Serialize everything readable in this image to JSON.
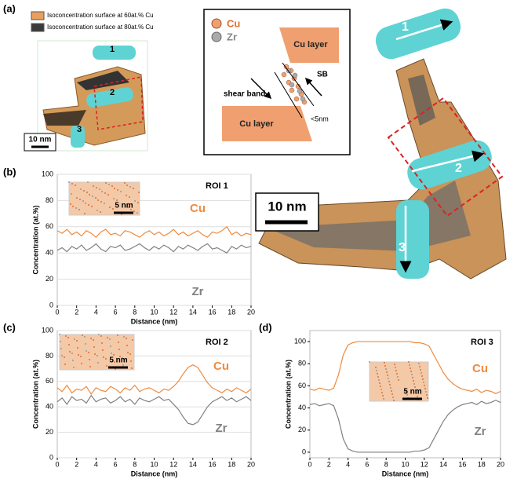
{
  "panel_labels": [
    "(a)",
    "(b)",
    "(c)",
    "(d)"
  ],
  "legend_3d": [
    "Isoconcentration surface at 60at.% Cu",
    "Isoconcentration surface at 80at.% Cu"
  ],
  "small_3d": {
    "rois": [
      "1",
      "2",
      "3"
    ],
    "scale_bar": "10 nm"
  },
  "schematic": {
    "legend": [
      "Cu",
      "Zr"
    ],
    "top_layer": "Cu layer",
    "bottom_layer": "Cu layer",
    "shear_band": "shear band",
    "sb": "SB",
    "width": "<5nm"
  },
  "large_3d": {
    "rois": [
      "1",
      "2",
      "3"
    ],
    "scale_bar": "10 nm"
  },
  "chart_data": [
    {
      "type": "line",
      "roi": "ROI 1",
      "scale_bar": "5 nm",
      "xlabel": "Distance (nm)",
      "ylabel": "Concentration (at.%)",
      "x": [
        0,
        0.5,
        1,
        1.5,
        2,
        2.5,
        3,
        3.5,
        4,
        4.5,
        5,
        5.5,
        6,
        6.5,
        7,
        7.5,
        8,
        8.5,
        9,
        9.5,
        10,
        10.5,
        11,
        11.5,
        12,
        12.5,
        13,
        13.5,
        14,
        14.5,
        15,
        15.5,
        16,
        16.5,
        17,
        17.5,
        18,
        18.5,
        19,
        19.5,
        20
      ],
      "xlim": [
        0,
        20
      ],
      "xticks": [
        0,
        2,
        4,
        6,
        8,
        10,
        12,
        14,
        16,
        18,
        20
      ],
      "ylim": [
        0,
        100
      ],
      "yticks": [
        0,
        20,
        40,
        60,
        80,
        100
      ],
      "grid": true,
      "series": [
        {
          "name": "Cu",
          "color": "#f08a3c",
          "values": [
            57,
            55,
            58,
            54,
            56,
            53,
            57,
            55,
            52,
            56,
            58,
            54,
            55,
            53,
            57,
            56,
            54,
            52,
            55,
            57,
            54,
            56,
            53,
            55,
            58,
            54,
            56,
            53,
            55,
            57,
            54,
            52,
            56,
            55,
            57,
            60,
            54,
            56,
            53,
            55,
            54
          ]
        },
        {
          "name": "Zr",
          "color": "#808080",
          "values": [
            42,
            44,
            41,
            45,
            43,
            46,
            42,
            44,
            47,
            43,
            41,
            45,
            44,
            46,
            42,
            43,
            45,
            47,
            44,
            42,
            45,
            43,
            46,
            44,
            41,
            45,
            43,
            46,
            44,
            42,
            45,
            47,
            43,
            44,
            42,
            40,
            45,
            43,
            46,
            44,
            45
          ]
        }
      ]
    },
    {
      "type": "line",
      "roi": "ROI 2",
      "scale_bar": "5 nm",
      "xlabel": "Distance (nm)",
      "ylabel": "Concentration (at.%)",
      "x": [
        0,
        0.5,
        1,
        1.5,
        2,
        2.5,
        3,
        3.5,
        4,
        4.5,
        5,
        5.5,
        6,
        6.5,
        7,
        7.5,
        8,
        8.5,
        9,
        9.5,
        10,
        10.5,
        11,
        11.5,
        12,
        12.5,
        13,
        13.5,
        14,
        14.5,
        15,
        15.5,
        16,
        16.5,
        17,
        17.5,
        18,
        18.5,
        19,
        19.5,
        20
      ],
      "xlim": [
        0,
        20
      ],
      "xticks": [
        0,
        2,
        4,
        6,
        8,
        10,
        12,
        14,
        16,
        18,
        20
      ],
      "ylim": [
        0,
        100
      ],
      "yticks": [
        0,
        20,
        40,
        60,
        80,
        100
      ],
      "grid": true,
      "series": [
        {
          "name": "Cu",
          "color": "#f08a3c",
          "values": [
            55,
            52,
            57,
            51,
            54,
            53,
            56,
            50,
            55,
            53,
            52,
            56,
            54,
            51,
            55,
            53,
            57,
            52,
            54,
            55,
            53,
            51,
            54,
            53,
            56,
            60,
            66,
            71,
            73,
            71,
            65,
            59,
            55,
            53,
            51,
            54,
            52,
            55,
            53,
            51,
            54
          ]
        },
        {
          "name": "Zr",
          "color": "#808080",
          "values": [
            44,
            47,
            42,
            48,
            45,
            46,
            43,
            49,
            44,
            46,
            47,
            43,
            45,
            48,
            44,
            46,
            42,
            47,
            45,
            44,
            46,
            48,
            45,
            46,
            42,
            38,
            32,
            27,
            26,
            28,
            34,
            40,
            44,
            46,
            48,
            45,
            47,
            44,
            46,
            48,
            45
          ]
        }
      ]
    },
    {
      "type": "line",
      "roi": "ROI 3",
      "scale_bar": "5 nm",
      "xlabel": "Distance (nm)",
      "ylabel": "Concentration (at.%)",
      "x": [
        0,
        0.5,
        1,
        1.5,
        2,
        2.5,
        3,
        3.5,
        4,
        4.5,
        5,
        5.5,
        6,
        6.5,
        7,
        7.5,
        8,
        8.5,
        9,
        9.5,
        10,
        10.5,
        11,
        11.5,
        12,
        12.5,
        13,
        13.5,
        14,
        14.5,
        15,
        15.5,
        16,
        16.5,
        17,
        17.5,
        18,
        18.5,
        19,
        19.5,
        20
      ],
      "xlim": [
        0,
        20
      ],
      "xticks": [
        0,
        2,
        4,
        6,
        8,
        10,
        12,
        14,
        16,
        18,
        20
      ],
      "ylim": [
        -5,
        110
      ],
      "yticks": [
        0,
        20,
        40,
        60,
        80,
        100
      ],
      "grid": false,
      "series": [
        {
          "name": "Cu",
          "color": "#f08a3c",
          "values": [
            57,
            56,
            58,
            57,
            56,
            58,
            70,
            88,
            97,
            99,
            100,
            100,
            100,
            100,
            100,
            100,
            100,
            100,
            100,
            100,
            100,
            100,
            99,
            99,
            98,
            96,
            88,
            80,
            72,
            66,
            62,
            59,
            57,
            56,
            55,
            57,
            54,
            56,
            55,
            53,
            55
          ]
        },
        {
          "name": "Zr",
          "color": "#808080",
          "values": [
            43,
            44,
            42,
            43,
            44,
            42,
            30,
            12,
            3,
            1,
            0,
            0,
            0,
            0,
            0,
            0,
            0,
            0,
            0,
            0,
            0,
            0,
            1,
            1,
            2,
            4,
            12,
            20,
            28,
            34,
            38,
            41,
            43,
            44,
            45,
            43,
            46,
            44,
            45,
            47,
            45
          ]
        }
      ]
    }
  ]
}
